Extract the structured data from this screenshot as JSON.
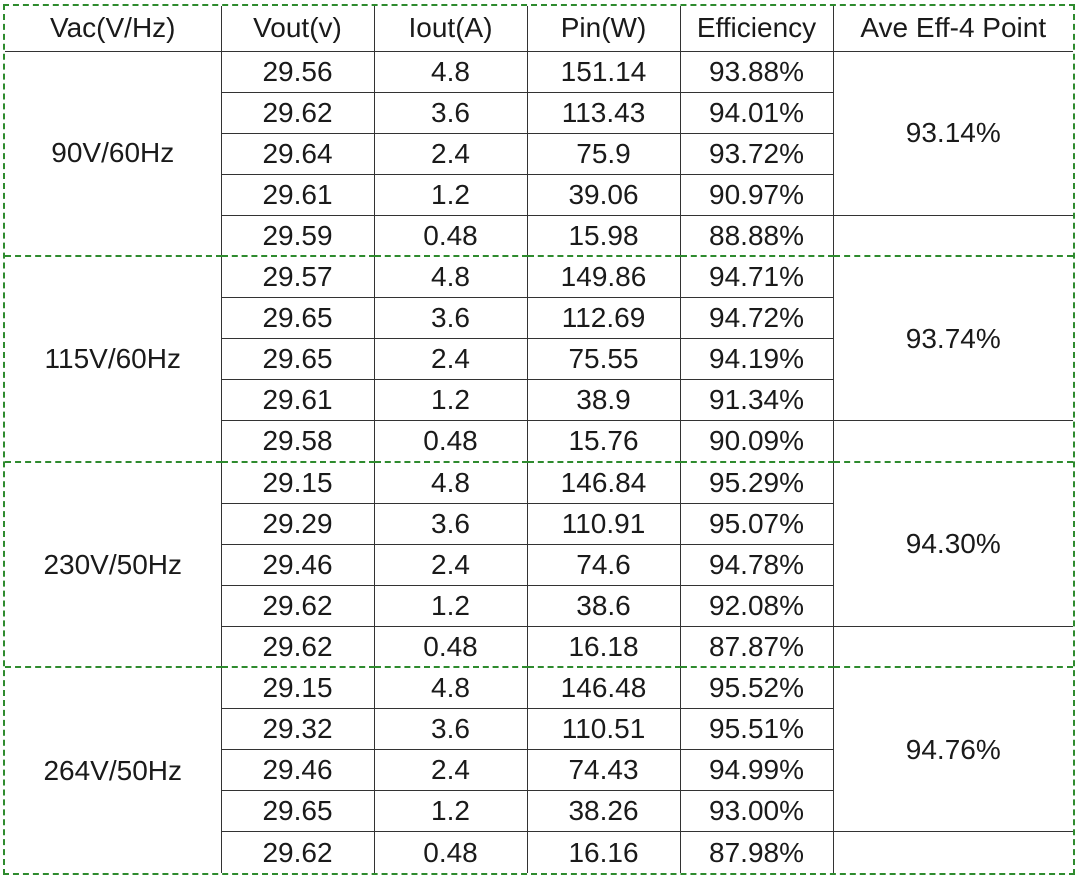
{
  "table": {
    "headers": {
      "vac": "Vac(V/Hz)",
      "vout": "Vout(v)",
      "iout": "Iout(A)",
      "pin": "Pin(W)",
      "efficiency": "Efficiency",
      "avg": "Ave Eff-4 Point"
    },
    "groups": [
      {
        "vac": "90V/60Hz",
        "avg": "93.14%",
        "rows": [
          {
            "vout": "29.56",
            "iout": "4.8",
            "pin": "151.14",
            "eff": "93.88%"
          },
          {
            "vout": "29.62",
            "iout": "3.6",
            "pin": "113.43",
            "eff": "94.01%"
          },
          {
            "vout": "29.64",
            "iout": "2.4",
            "pin": "75.9",
            "eff": "93.72%"
          },
          {
            "vout": "29.61",
            "iout": "1.2",
            "pin": "39.06",
            "eff": "90.97%"
          },
          {
            "vout": "29.59",
            "iout": "0.48",
            "pin": "15.98",
            "eff": "88.88%"
          }
        ]
      },
      {
        "vac": "115V/60Hz",
        "avg": "93.74%",
        "rows": [
          {
            "vout": "29.57",
            "iout": "4.8",
            "pin": "149.86",
            "eff": "94.71%"
          },
          {
            "vout": "29.65",
            "iout": "3.6",
            "pin": "112.69",
            "eff": "94.72%"
          },
          {
            "vout": "29.65",
            "iout": "2.4",
            "pin": "75.55",
            "eff": "94.19%"
          },
          {
            "vout": "29.61",
            "iout": "1.2",
            "pin": "38.9",
            "eff": "91.34%"
          },
          {
            "vout": "29.58",
            "iout": "0.48",
            "pin": "15.76",
            "eff": "90.09%"
          }
        ]
      },
      {
        "vac": "230V/50Hz",
        "avg": "94.30%",
        "rows": [
          {
            "vout": "29.15",
            "iout": "4.8",
            "pin": "146.84",
            "eff": "95.29%"
          },
          {
            "vout": "29.29",
            "iout": "3.6",
            "pin": "110.91",
            "eff": "95.07%"
          },
          {
            "vout": "29.46",
            "iout": "2.4",
            "pin": "74.6",
            "eff": "94.78%"
          },
          {
            "vout": "29.62",
            "iout": "1.2",
            "pin": "38.6",
            "eff": "92.08%"
          },
          {
            "vout": "29.62",
            "iout": "0.48",
            "pin": "16.18",
            "eff": "87.87%"
          }
        ]
      },
      {
        "vac": "264V/50Hz",
        "avg": "94.76%",
        "rows": [
          {
            "vout": "29.15",
            "iout": "4.8",
            "pin": "146.48",
            "eff": "95.52%"
          },
          {
            "vout": "29.32",
            "iout": "3.6",
            "pin": "110.51",
            "eff": "95.51%"
          },
          {
            "vout": "29.46",
            "iout": "2.4",
            "pin": "74.43",
            "eff": "94.99%"
          },
          {
            "vout": "29.65",
            "iout": "1.2",
            "pin": "38.26",
            "eff": "93.00%"
          },
          {
            "vout": "29.62",
            "iout": "0.48",
            "pin": "16.16",
            "eff": "87.98%"
          }
        ]
      }
    ]
  }
}
